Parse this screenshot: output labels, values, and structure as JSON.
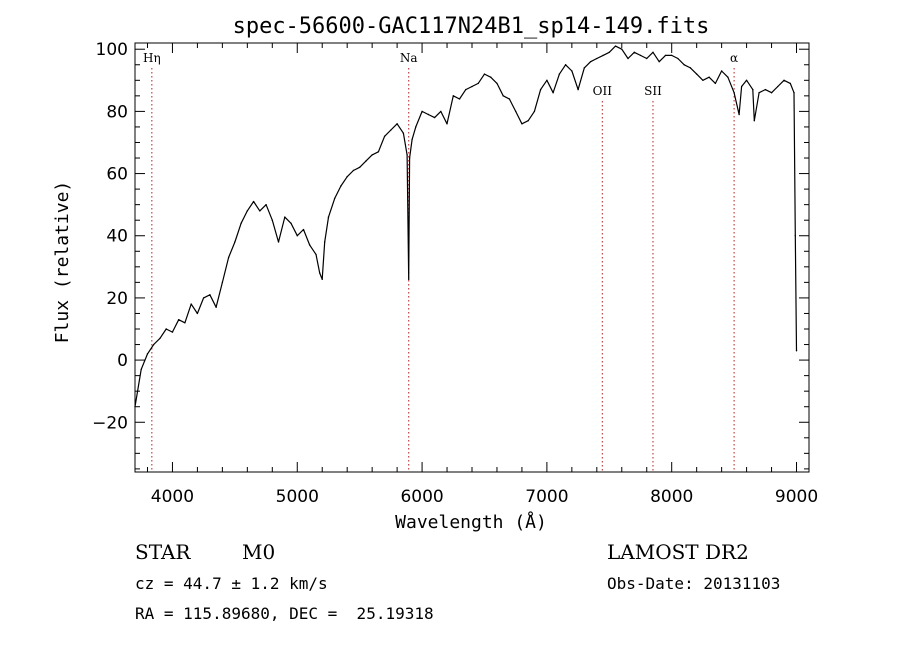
{
  "chart_data": {
    "type": "line",
    "title": "spec-56600-GAC117N24B1_sp14-149.fits",
    "xlabel": "Wavelength (Å)",
    "ylabel": "Flux (relative)",
    "xlim": [
      3700,
      9100
    ],
    "ylim": [
      -36,
      102
    ],
    "x_ticks": [
      4000,
      5000,
      6000,
      7000,
      8000,
      9000
    ],
    "y_ticks": [
      -20,
      0,
      20,
      40,
      60,
      80,
      100
    ],
    "x_tick_labels": [
      "4000",
      "5000",
      "6000",
      "7000",
      "8000",
      "9000"
    ],
    "y_tick_labels": [
      "−20",
      "0",
      "20",
      "40",
      "60",
      "80",
      "100"
    ],
    "grid": false,
    "series": [
      {
        "x": [
          3700,
          3750,
          3800,
          3850,
          3900,
          3950,
          4000,
          4050,
          4100,
          4150,
          4200,
          4250,
          4300,
          4350,
          4400,
          4450,
          4500,
          4550,
          4600,
          4650,
          4700,
          4750,
          4800,
          4850,
          4900,
          4950,
          5000,
          5050,
          5100,
          5150,
          5180,
          5200,
          5220,
          5250,
          5300,
          5350,
          5400,
          5450,
          5500,
          5550,
          5600,
          5650,
          5700,
          5750,
          5800,
          5850,
          5880,
          5893,
          5900,
          5920,
          5950,
          6000,
          6050,
          6100,
          6150,
          6200,
          6250,
          6300,
          6350,
          6400,
          6450,
          6500,
          6550,
          6600,
          6650,
          6700,
          6750,
          6800,
          6850,
          6900,
          6950,
          7000,
          7050,
          7100,
          7150,
          7200,
          7250,
          7300,
          7350,
          7400,
          7450,
          7500,
          7550,
          7600,
          7650,
          7700,
          7750,
          7800,
          7850,
          7900,
          7950,
          8000,
          8050,
          8100,
          8150,
          8200,
          8250,
          8300,
          8350,
          8400,
          8450,
          8500,
          8540,
          8560,
          8600,
          8650,
          8662,
          8700,
          8750,
          8800,
          8850,
          8900,
          8950,
          8980,
          8990,
          9000
        ],
        "y": [
          -15,
          -3,
          2,
          5,
          7,
          10,
          9,
          13,
          12,
          18,
          15,
          20,
          21,
          17,
          25,
          33,
          38,
          44,
          48,
          51,
          48,
          50,
          45,
          38,
          46,
          44,
          40,
          42,
          37,
          34,
          28,
          26,
          38,
          46,
          52,
          56,
          59,
          61,
          62,
          64,
          66,
          67,
          72,
          74,
          76,
          73,
          66,
          26,
          65,
          71,
          75,
          80,
          79,
          78,
          80,
          76,
          85,
          84,
          87,
          88,
          89,
          92,
          91,
          89,
          85,
          84,
          80,
          76,
          77,
          80,
          87,
          90,
          86,
          92,
          95,
          93,
          87,
          94,
          96,
          97,
          98,
          99,
          101,
          100,
          97,
          99,
          98,
          97,
          99,
          96,
          98,
          98,
          97,
          95,
          94,
          92,
          90,
          91,
          89,
          93,
          91,
          86,
          79,
          88,
          90,
          87,
          77,
          86,
          87,
          86,
          88,
          90,
          89,
          86,
          40,
          3
        ]
      }
    ],
    "lines": [
      {
        "label": "Hη",
        "x": 3835
      },
      {
        "label": "Na",
        "x": 5893
      },
      {
        "label": "OII",
        "x": 7444
      },
      {
        "label": "SII",
        "x": 7850
      },
      {
        "label": "α",
        "x": 8500
      }
    ]
  },
  "info": {
    "class": "STAR",
    "subclass": "M0",
    "cz": "cz = 44.7 ± 1.2 km/s",
    "radec": "RA = 115.89680, DEC =  25.19318",
    "survey": "LAMOST DR2",
    "obsdate": "Obs-Date: 20131103"
  }
}
